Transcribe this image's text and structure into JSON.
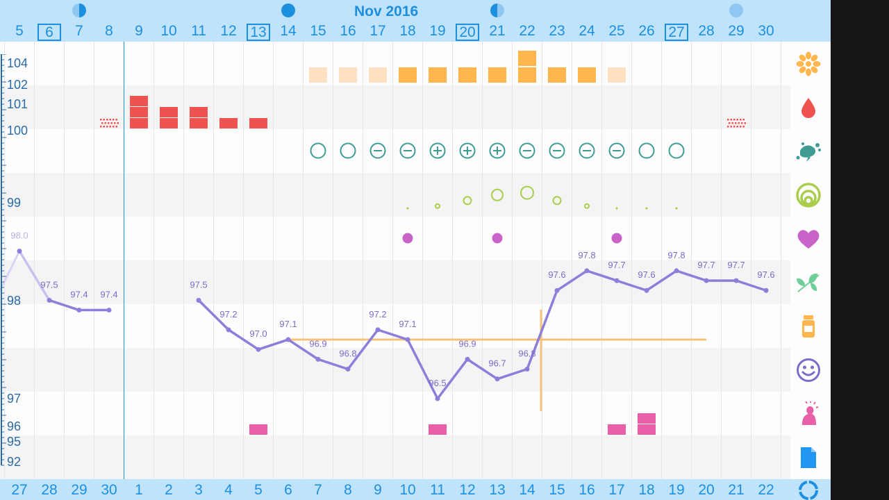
{
  "header": {
    "month_label": "Nov 2016",
    "days": [
      {
        "label": "5",
        "boxed": false
      },
      {
        "label": "6",
        "boxed": true
      },
      {
        "label": "7",
        "boxed": false
      },
      {
        "label": "8",
        "boxed": false
      },
      {
        "label": "9",
        "boxed": false
      },
      {
        "label": "10",
        "boxed": false
      },
      {
        "label": "11",
        "boxed": false
      },
      {
        "label": "12",
        "boxed": false
      },
      {
        "label": "13",
        "boxed": true
      },
      {
        "label": "14",
        "boxed": false
      },
      {
        "label": "15",
        "boxed": false
      },
      {
        "label": "16",
        "boxed": false
      },
      {
        "label": "17",
        "boxed": false
      },
      {
        "label": "18",
        "boxed": false
      },
      {
        "label": "19",
        "boxed": false
      },
      {
        "label": "20",
        "boxed": true
      },
      {
        "label": "21",
        "boxed": false
      },
      {
        "label": "22",
        "boxed": false
      },
      {
        "label": "23",
        "boxed": false
      },
      {
        "label": "24",
        "boxed": false
      },
      {
        "label": "25",
        "boxed": false
      },
      {
        "label": "26",
        "boxed": false
      },
      {
        "label": "27",
        "boxed": true
      },
      {
        "label": "28",
        "boxed": false
      },
      {
        "label": "29",
        "boxed": false
      },
      {
        "label": "30",
        "boxed": false
      }
    ],
    "moon_phases": [
      {
        "day_index": 2,
        "phase": "first-quarter"
      },
      {
        "day_index": 9,
        "phase": "full"
      },
      {
        "day_index": 16,
        "phase": "last-quarter"
      },
      {
        "day_index": 24,
        "phase": "new"
      }
    ]
  },
  "footer": {
    "cycle_days": [
      "27",
      "28",
      "29",
      "30",
      "1",
      "2",
      "3",
      "4",
      "5",
      "6",
      "7",
      "8",
      "9",
      "10",
      "11",
      "12",
      "13",
      "14",
      "15",
      "16",
      "17",
      "18",
      "19",
      "20",
      "21",
      "22"
    ]
  },
  "y_axis": {
    "labels": [
      "104",
      "102",
      "101",
      "100",
      "99",
      "98",
      "97",
      "96",
      "95",
      "92"
    ]
  },
  "rows": {
    "cervical_fluid": [
      {
        "day_index": 10,
        "level": 1,
        "shade": "light"
      },
      {
        "day_index": 11,
        "level": 1,
        "shade": "light"
      },
      {
        "day_index": 12,
        "level": 1,
        "shade": "light"
      },
      {
        "day_index": 13,
        "level": 1,
        "shade": "dark"
      },
      {
        "day_index": 14,
        "level": 1,
        "shade": "dark"
      },
      {
        "day_index": 15,
        "level": 1,
        "shade": "dark"
      },
      {
        "day_index": 16,
        "level": 1,
        "shade": "dark"
      },
      {
        "day_index": 17,
        "level": 2,
        "shade": "dark"
      },
      {
        "day_index": 18,
        "level": 1,
        "shade": "dark"
      },
      {
        "day_index": 19,
        "level": 1,
        "shade": "dark"
      },
      {
        "day_index": 20,
        "level": 1,
        "shade": "light"
      }
    ],
    "menstruation": [
      {
        "day_index": 3,
        "level": "spotting"
      },
      {
        "day_index": 4,
        "level": "heavy"
      },
      {
        "day_index": 5,
        "level": "medium"
      },
      {
        "day_index": 6,
        "level": "medium"
      },
      {
        "day_index": 7,
        "level": "light"
      },
      {
        "day_index": 8,
        "level": "light"
      },
      {
        "day_index": 24,
        "level": "spotting"
      }
    ],
    "tests": [
      {
        "day_index": 10,
        "result": "none"
      },
      {
        "day_index": 11,
        "result": "none"
      },
      {
        "day_index": 12,
        "result": "negative"
      },
      {
        "day_index": 13,
        "result": "negative"
      },
      {
        "day_index": 14,
        "result": "positive"
      },
      {
        "day_index": 15,
        "result": "positive"
      },
      {
        "day_index": 16,
        "result": "positive"
      },
      {
        "day_index": 17,
        "result": "negative"
      },
      {
        "day_index": 18,
        "result": "negative"
      },
      {
        "day_index": 19,
        "result": "negative"
      },
      {
        "day_index": 20,
        "result": "negative"
      },
      {
        "day_index": 21,
        "result": "none"
      },
      {
        "day_index": 22,
        "result": "none"
      }
    ],
    "cervix": [
      {
        "day_index": 13,
        "size": 1
      },
      {
        "day_index": 14,
        "size": 2
      },
      {
        "day_index": 15,
        "size": 3
      },
      {
        "day_index": 16,
        "size": 4
      },
      {
        "day_index": 17,
        "size": 5
      },
      {
        "day_index": 18,
        "size": 3
      },
      {
        "day_index": 19,
        "size": 2
      },
      {
        "day_index": 20,
        "size": 1
      },
      {
        "day_index": 21,
        "size": 1
      },
      {
        "day_index": 22,
        "size": 1
      }
    ],
    "intercourse": [
      13,
      16,
      20
    ],
    "symptoms": [
      {
        "day_index": 8,
        "count": 1
      },
      {
        "day_index": 14,
        "count": 1
      },
      {
        "day_index": 20,
        "count": 1
      },
      {
        "day_index": 21,
        "count": 2
      }
    ]
  },
  "chart_data": {
    "type": "line",
    "series": [
      {
        "values": [
          {
            "day_index": 0,
            "temp": 98.0
          },
          {
            "day_index": 1,
            "temp": 97.5
          },
          {
            "day_index": 2,
            "temp": 97.4
          },
          {
            "day_index": 3,
            "temp": 97.4
          },
          {
            "day_index": 6,
            "temp": 97.5
          },
          {
            "day_index": 7,
            "temp": 97.2
          },
          {
            "day_index": 8,
            "temp": 97.0
          },
          {
            "day_index": 9,
            "temp": 97.1
          },
          {
            "day_index": 10,
            "temp": 96.9
          },
          {
            "day_index": 11,
            "temp": 96.8
          },
          {
            "day_index": 12,
            "temp": 97.2
          },
          {
            "day_index": 13,
            "temp": 97.1
          },
          {
            "day_index": 14,
            "temp": 96.5
          },
          {
            "day_index": 15,
            "temp": 96.9
          },
          {
            "day_index": 16,
            "temp": 96.7
          },
          {
            "day_index": 17,
            "temp": 96.8
          },
          {
            "day_index": 18,
            "temp": 97.6
          },
          {
            "day_index": 19,
            "temp": 97.8
          },
          {
            "day_index": 20,
            "temp": 97.7
          },
          {
            "day_index": 21,
            "temp": 97.6
          },
          {
            "day_index": 22,
            "temp": 97.8
          },
          {
            "day_index": 23,
            "temp": 97.7
          },
          {
            "day_index": 24,
            "temp": 97.7
          },
          {
            "day_index": 25,
            "temp": 97.6
          }
        ]
      }
    ],
    "coverline_temp": 97.1,
    "coverline_from_day_index": 9,
    "coverline_to_day_index": 23,
    "ovulation_day_index": 17,
    "cycle_start_day_index": 4
  },
  "sidebar": {
    "icons": [
      "sun-icon",
      "blood-drop-icon",
      "splash-icon",
      "cervix-rings-icon",
      "heart-icon",
      "leaf-icon",
      "pill-bottle-icon",
      "smiley-icon",
      "symptom-person-icon",
      "note-icon",
      "cycle-icon"
    ]
  },
  "colors": {
    "accent_blue": "#1d8fdf",
    "temp_line": "#8b7fd9",
    "red": "#ef5350",
    "orange": "#ffb74d",
    "orange_light": "#ffe0c0",
    "teal": "#3f9c95",
    "green": "#aacd4b",
    "purple": "#c864c8",
    "pink": "#e85fa7"
  }
}
